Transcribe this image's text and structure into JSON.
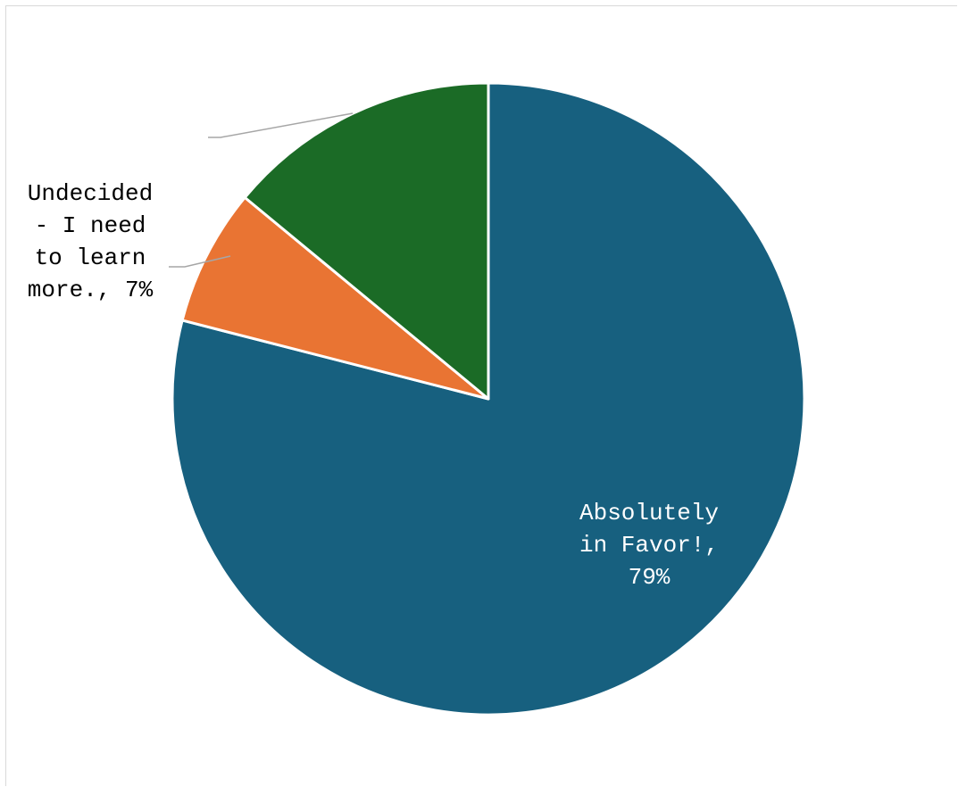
{
  "chart_data": {
    "type": "pie",
    "title": "",
    "start_angle_deg": 0,
    "direction": "clockwise",
    "slices": [
      {
        "key": "favor",
        "name": "Absolutely in Favor!",
        "value": 79,
        "display": "Absolutely\nin Favor!,\n79%",
        "color": "#17607f"
      },
      {
        "key": "undecided",
        "name": "Undecided - I need to learn more.",
        "value": 7,
        "display": "Undecided\n- I need\nto learn\nmore., 7%",
        "color": "#e97433"
      },
      {
        "key": "green",
        "name": "",
        "value": 14,
        "display": "",
        "color": "#1b6b26"
      }
    ]
  }
}
